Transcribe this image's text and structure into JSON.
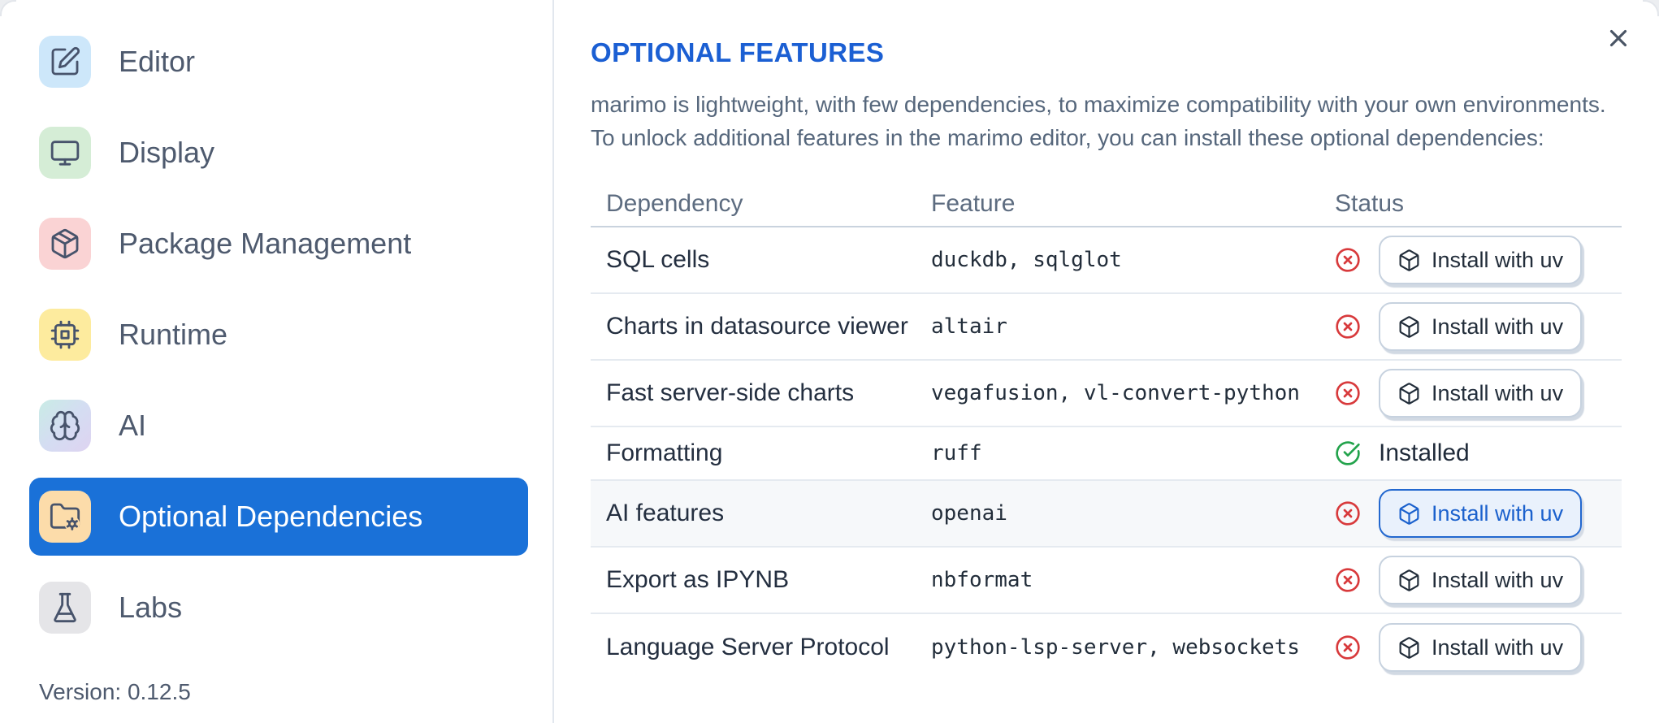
{
  "sidebar": {
    "items": [
      {
        "label": "Editor",
        "icon": "square-pen",
        "icon_bg": "#cde7fa",
        "selected": false
      },
      {
        "label": "Display",
        "icon": "monitor",
        "icon_bg": "#d5edd6",
        "selected": false
      },
      {
        "label": "Package Management",
        "icon": "package",
        "icon_bg": "#fad3d4",
        "selected": false
      },
      {
        "label": "Runtime",
        "icon": "cpu",
        "icon_bg": "#fdeb9e",
        "selected": false
      },
      {
        "label": "AI",
        "icon": "brain",
        "icon_bg": "linear-gradient(135deg,#c9ece5,#d4ddf2,#ded3f1)",
        "selected": false
      },
      {
        "label": "Optional Dependencies",
        "icon": "folder-cog",
        "icon_bg": "#fcdcaa",
        "selected": true
      },
      {
        "label": "Labs",
        "icon": "flask",
        "icon_bg": "#e5e5e8",
        "selected": false
      }
    ],
    "version_label": "Version: 0.12.5"
  },
  "panel": {
    "title": "OPTIONAL FEATURES",
    "description_line1": "marimo is lightweight, with few dependencies, to maximize compatibility with your own environments.",
    "description_line2": "To unlock additional features in the marimo editor, you can install these optional dependencies:",
    "close_icon": "x-icon",
    "table": {
      "columns": [
        "Dependency",
        "Feature",
        "Status"
      ],
      "install_action_label": "Install with uv",
      "installed_label": "Installed",
      "rows": [
        {
          "dependency": "SQL cells",
          "feature": "duckdb, sqlglot",
          "installed": false,
          "action": "Install with uv",
          "highlighted": false,
          "focused": false
        },
        {
          "dependency": "Charts in datasource viewer",
          "feature": "altair",
          "installed": false,
          "action": "Install with uv",
          "highlighted": false,
          "focused": false
        },
        {
          "dependency": "Fast server-side charts",
          "feature": "vegafusion, vl-convert-python",
          "installed": false,
          "action": "Install with uv",
          "highlighted": false,
          "focused": false
        },
        {
          "dependency": "Formatting",
          "feature": "ruff",
          "installed": true,
          "status_label": "Installed",
          "highlighted": false,
          "focused": false
        },
        {
          "dependency": "AI features",
          "feature": "openai",
          "installed": false,
          "action": "Install with uv",
          "highlighted": true,
          "focused": true
        },
        {
          "dependency": "Export as IPYNB",
          "feature": "nbformat",
          "installed": false,
          "action": "Install with uv",
          "highlighted": false,
          "focused": false
        },
        {
          "dependency": "Language Server Protocol",
          "feature": "python-lsp-server, websockets",
          "installed": false,
          "action": "Install with uv",
          "highlighted": false,
          "focused": false
        }
      ]
    }
  },
  "colors": {
    "accent_selected_bg": "#1a71d8",
    "title_blue": "#1b5fd3",
    "status_error_red": "#d83a3c",
    "status_success_green": "#23a34c",
    "row_highlight_bg": "#f6f8fa",
    "focused_button_border": "#2368cf",
    "focused_button_bg": "#e9f1fc",
    "focused_button_text": "#1b61cd",
    "sidebar_text": "#4e5a6e",
    "table_text": "#242f40",
    "muted_text": "#56677c",
    "divider": "#e2e7ee"
  }
}
